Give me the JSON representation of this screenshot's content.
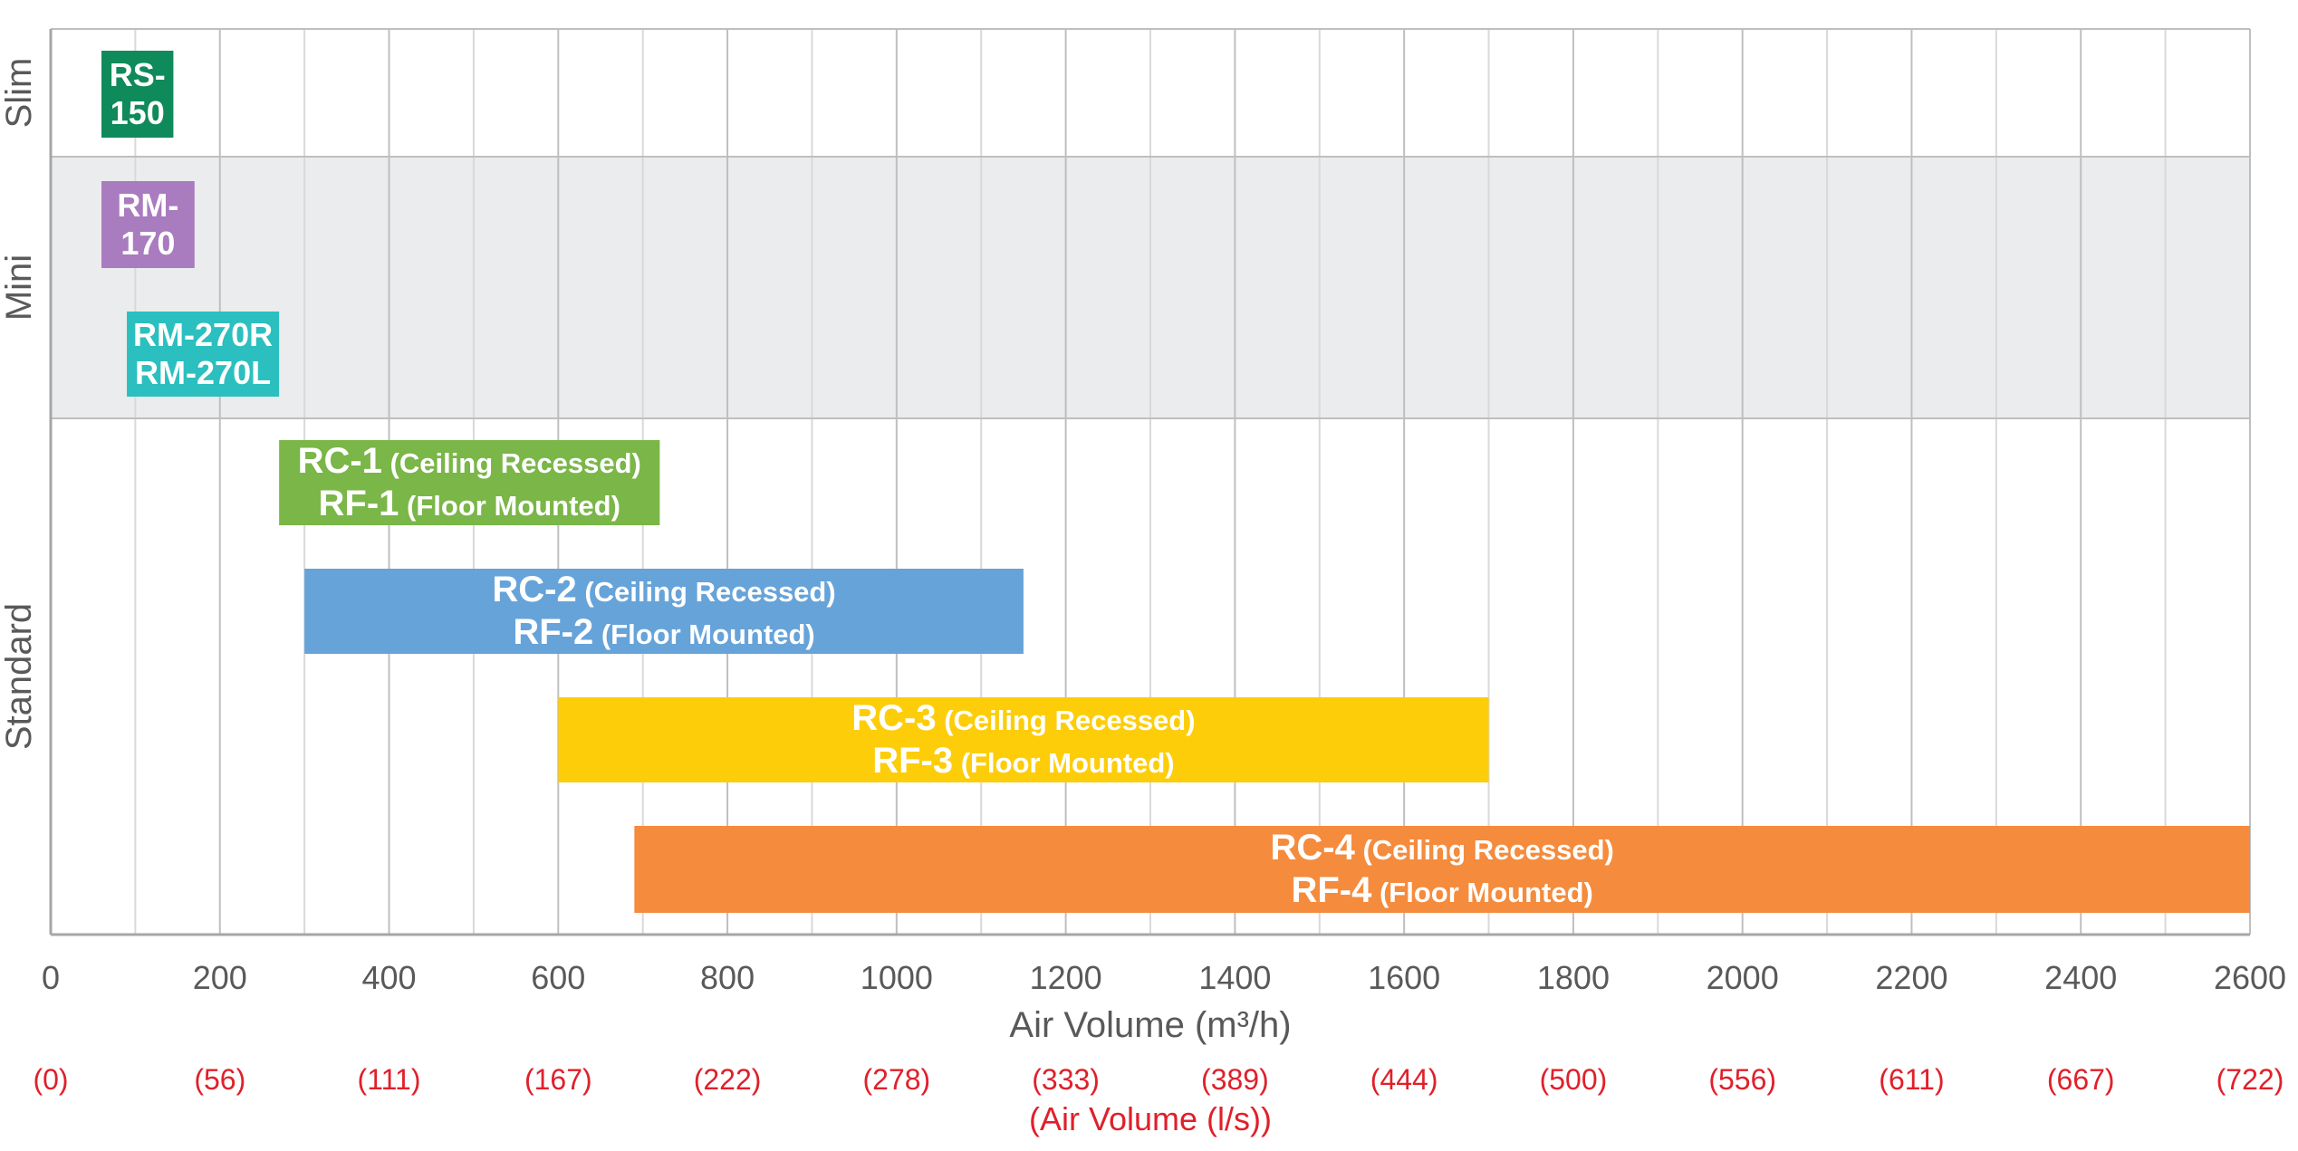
{
  "chart_data": {
    "type": "bar",
    "orientation": "horizontal-range",
    "title": "",
    "x_axis": {
      "label": "Air Volume (m³/h)",
      "range": [
        0,
        2600
      ],
      "ticks": [
        "0",
        "200",
        "400",
        "600",
        "800",
        "1000",
        "1200",
        "1400",
        "1600",
        "1800",
        "2000",
        "2200",
        "2400",
        "2600"
      ]
    },
    "x_axis_secondary": {
      "label": "(Air Volume (l/s))",
      "ticks": [
        "(0)",
        "(56)",
        "(111)",
        "(167)",
        "(222)",
        "(278)",
        "(333)",
        "(389)",
        "(444)",
        "(500)",
        "(556)",
        "(611)",
        "(667)",
        "(722)"
      ]
    },
    "grid": true,
    "categories": [
      {
        "name": "Slim",
        "shaded": false
      },
      {
        "name": "Mini",
        "shaded": true
      },
      {
        "name": "Standard",
        "shaded": false
      }
    ],
    "bars": [
      {
        "category": "Slim",
        "start": 60,
        "end": 145,
        "color": "#0f8a5a",
        "lines": [
          {
            "model": "RS-",
            "desc": ""
          },
          {
            "model": "150",
            "desc": ""
          }
        ]
      },
      {
        "category": "Mini",
        "start": 60,
        "end": 170,
        "color": "#a97bbf",
        "lines": [
          {
            "model": "RM-",
            "desc": ""
          },
          {
            "model": "170",
            "desc": ""
          }
        ]
      },
      {
        "category": "Mini",
        "start": 90,
        "end": 270,
        "color": "#2cbfbf",
        "lines": [
          {
            "model": "RM-270R",
            "desc": ""
          },
          {
            "model": "RM-270L",
            "desc": ""
          }
        ]
      },
      {
        "category": "Standard",
        "start": 270,
        "end": 720,
        "color": "#7ab648",
        "lines": [
          {
            "model": "RC-1",
            "desc": " (Ceiling Recessed)"
          },
          {
            "model": "RF-1",
            "desc": " (Floor Mounted)"
          }
        ]
      },
      {
        "category": "Standard",
        "start": 300,
        "end": 1150,
        "color": "#66a3d9",
        "lines": [
          {
            "model": "RC-2",
            "desc": " (Ceiling Recessed)"
          },
          {
            "model": "RF-2",
            "desc": " (Floor Mounted)"
          }
        ]
      },
      {
        "category": "Standard",
        "start": 600,
        "end": 1700,
        "color": "#fdcd0a",
        "lines": [
          {
            "model": "RC-3",
            "desc": " (Ceiling Recessed)"
          },
          {
            "model": "RF-3",
            "desc": " (Floor Mounted)"
          }
        ]
      },
      {
        "category": "Standard",
        "start": 690,
        "end": 2600,
        "color": "#f58b3c",
        "lines": [
          {
            "model": "RC-4",
            "desc": " (Ceiling Recessed)"
          },
          {
            "model": "RF-4",
            "desc": " (Floor Mounted)"
          }
        ]
      }
    ]
  }
}
